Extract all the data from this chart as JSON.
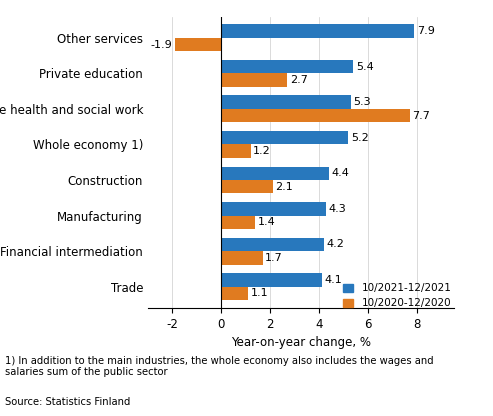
{
  "categories": [
    "Trade",
    "Financial intermediation",
    "Manufacturing",
    "Construction",
    "Whole economy 1)",
    "Private health and social work",
    "Private education",
    "Other services"
  ],
  "series_2021": [
    4.1,
    4.2,
    4.3,
    4.4,
    5.2,
    5.3,
    5.4,
    7.9
  ],
  "series_2020": [
    1.1,
    1.7,
    1.4,
    2.1,
    1.2,
    7.7,
    2.7,
    -1.9
  ],
  "color_2021": "#2878bd",
  "color_2020": "#e07b20",
  "legend_2021": "10/2021-12/2021",
  "legend_2020": "10/2020-12/2020",
  "xlabel": "Year-on-year change, %",
  "xlim": [
    -3,
    9.5
  ],
  "xticks": [
    -2,
    0,
    2,
    4,
    6,
    8
  ],
  "footnote1": "1) In addition to the main industries, the whole economy also includes the wages and\nsalaries sum of the public sector",
  "footnote2": "Source: Statistics Finland",
  "bar_height": 0.38,
  "label_fontsize": 8,
  "tick_fontsize": 8.5,
  "xlabel_fontsize": 8.5,
  "legend_fontsize": 7.5
}
